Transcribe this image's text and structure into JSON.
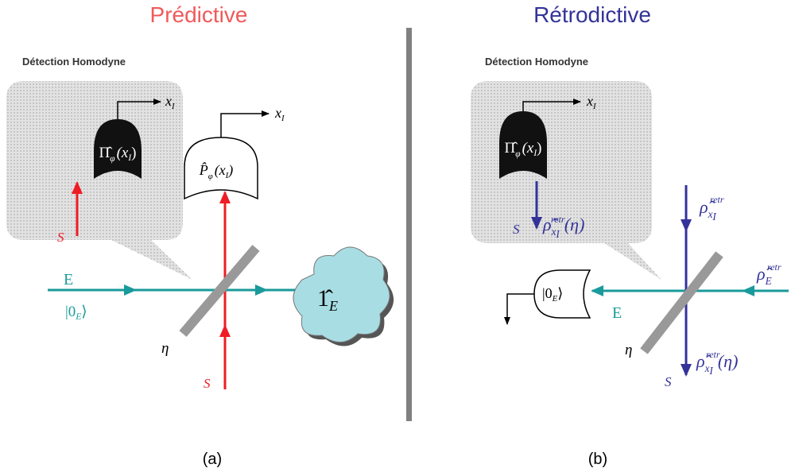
{
  "left": {
    "title": "Prédictive",
    "caption": "(a)",
    "inset_title": "Détection Homodyne",
    "inset_output": {
      "base": "x",
      "sub": "I"
    },
    "inset_operator": {
      "base": "Π̂",
      "sub": "φ",
      "arg": "(x",
      "argsub": "I",
      "close": ")"
    },
    "inset_signal": "S",
    "detector_output": {
      "base": "x",
      "sub": "I"
    },
    "detector_operator": {
      "base": "P̂",
      "sub": "φ",
      "arg": "(x",
      "argsub": "I",
      "close": ")"
    },
    "env_label": "E",
    "env_state": {
      "open": "|0",
      "sub": "E",
      "close": "⟩"
    },
    "beamsplitter": "η",
    "signal": "S",
    "env_out": {
      "base": "1̂",
      "sub": "E"
    }
  },
  "right": {
    "title": "Rétrodictive",
    "caption": "(b)",
    "inset_title": "Détection Homodyne",
    "inset_output": {
      "base": "x",
      "sub": "I"
    },
    "inset_operator": {
      "base": "Π̂",
      "sub": "φ",
      "arg": "(x",
      "argsub": "I",
      "close": ")"
    },
    "inset_signal": "S",
    "inset_state": {
      "base": "ρ̂",
      "sup": "retr",
      "sub": "x",
      "subsub": "I",
      "arg": "(η)"
    },
    "env_state": {
      "open": "|0",
      "sub": "E",
      "close": "⟩"
    },
    "env_label": "E",
    "env_in": {
      "base": "ρ̂",
      "sup": "retr",
      "sub": "E"
    },
    "signal_in": {
      "base": "ρ̂",
      "sup": "retr",
      "sub": "x",
      "subsub": "I"
    },
    "beamsplitter": "η",
    "signal": "S",
    "signal_out": {
      "base": "ρ̂",
      "sup": "retr",
      "sub": "x",
      "subsub": "I",
      "arg": "(η)"
    }
  }
}
